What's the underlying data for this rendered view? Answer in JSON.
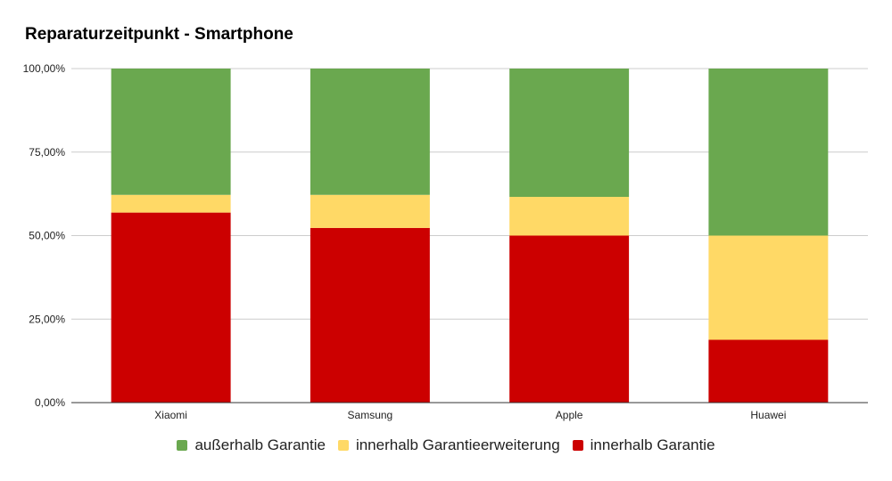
{
  "chart_data": {
    "type": "bar",
    "stacked": true,
    "title": "Reparaturzeitpunkt - Smartphone",
    "categories": [
      "Xiaomi",
      "Samsung",
      "Apple",
      "Huawei"
    ],
    "series": [
      {
        "name": "innerhalb Garantie",
        "color": "#cc0000",
        "values": [
          56.9,
          52.3,
          50.0,
          18.8
        ]
      },
      {
        "name": "innerhalb Garantieerweiterung",
        "color": "#ffd966",
        "values": [
          5.3,
          9.9,
          11.6,
          31.2
        ]
      },
      {
        "name": "außerhalb Garantie",
        "color": "#6aa84f",
        "values": [
          37.8,
          37.8,
          38.4,
          50.0
        ]
      }
    ],
    "legend_order": [
      2,
      1,
      0
    ],
    "ylim": [
      0,
      100
    ],
    "yticks": [
      "0,00%",
      "25,00%",
      "50,00%",
      "75,00%",
      "100,00%"
    ],
    "grid": true,
    "legend_position": "bottom"
  }
}
